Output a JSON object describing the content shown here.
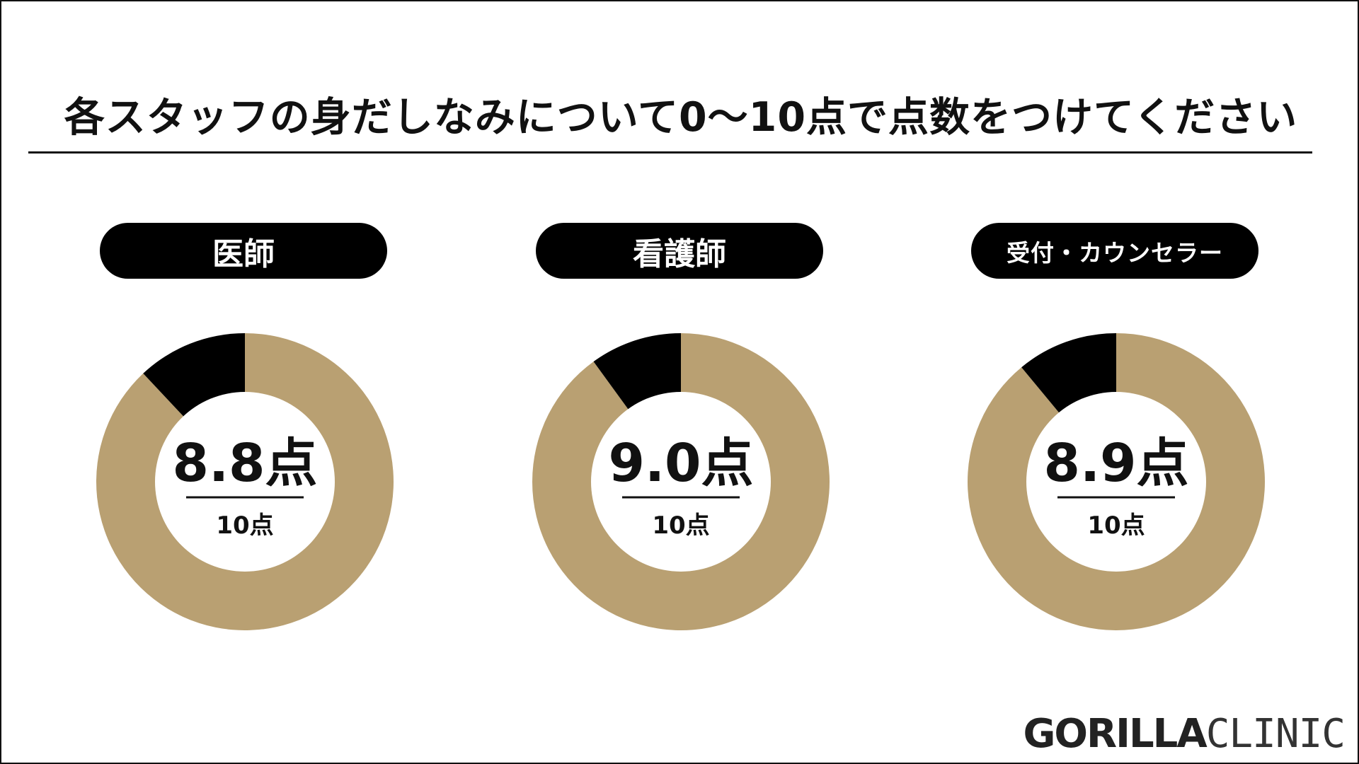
{
  "title": "各スタッフの身だしなみについて0〜10点で点数をつけてください",
  "logo": {
    "bold": "GORILLA",
    "light": "CLINIC"
  },
  "colors": {
    "filled": "#b9a072",
    "remaining": "#000000",
    "center": "#ffffff",
    "pill": "#000000"
  },
  "chart_data": [
    {
      "type": "pie",
      "label": "医師",
      "value": 8.8,
      "max": 10,
      "score_text": "8.8点",
      "total_text": "10点"
    },
    {
      "type": "pie",
      "label": "看護師",
      "value": 9.0,
      "max": 10,
      "score_text": "9.0点",
      "total_text": "10点"
    },
    {
      "type": "pie",
      "label": "受付・カウンセラー",
      "value": 8.9,
      "max": 10,
      "score_text": "8.9点",
      "total_text": "10点"
    }
  ]
}
